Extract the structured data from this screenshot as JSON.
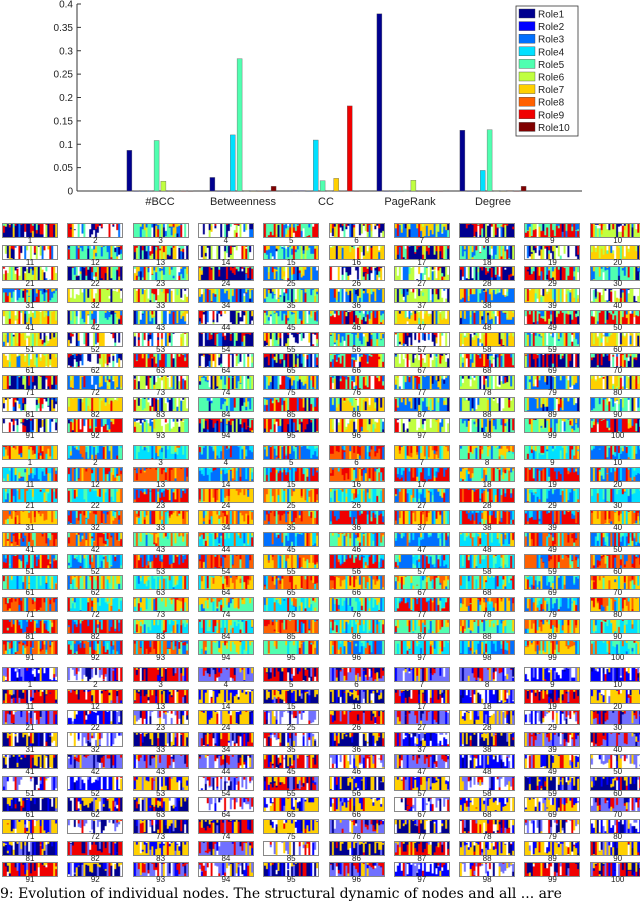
{
  "chart_data": {
    "type": "bar",
    "title": "",
    "xlabel": "",
    "ylabel": "",
    "ylim": [
      0,
      0.4
    ],
    "yticks": [
      "0",
      "0.05",
      "0.1",
      "0.15",
      "0.2",
      "0.25",
      "0.3",
      "0.35",
      "0.4"
    ],
    "categories": [
      "#BCC",
      "Betweenness",
      "CC",
      "PageRank",
      "Degree"
    ],
    "legend_position": "top-right",
    "grid": false,
    "series": [
      {
        "name": "Role1",
        "color": "#00008f",
        "values": [
          0.087,
          0.029,
          0.001,
          0.379,
          0.13
        ]
      },
      {
        "name": "Role2",
        "color": "#0000ff",
        "values": [
          0,
          0,
          0.001,
          0,
          0
        ]
      },
      {
        "name": "Role3",
        "color": "#0070ff",
        "values": [
          0,
          0,
          0,
          0,
          0
        ]
      },
      {
        "name": "Role4",
        "color": "#00e0ff",
        "values": [
          0,
          0.12,
          0.109,
          0,
          0.044
        ]
      },
      {
        "name": "Role5",
        "color": "#50ffb0",
        "values": [
          0.108,
          0.283,
          0.022,
          0.001,
          0.131
        ]
      },
      {
        "name": "Role6",
        "color": "#c0ff40",
        "values": [
          0.021,
          0.001,
          0.001,
          0.023,
          0.001
        ]
      },
      {
        "name": "Role7",
        "color": "#ffd000",
        "values": [
          0,
          0,
          0.027,
          0,
          0
        ]
      },
      {
        "name": "Role8",
        "color": "#ff6000",
        "values": [
          0,
          0,
          0,
          0,
          0.001
        ]
      },
      {
        "name": "Role9",
        "color": "#f00000",
        "values": [
          0,
          0,
          0.182,
          0,
          0
        ]
      },
      {
        "name": "Role10",
        "color": "#800000",
        "values": [
          0,
          0.01,
          0,
          0,
          0.01
        ]
      }
    ]
  },
  "node_labels": [
    "1",
    "2",
    "3",
    "4",
    "5",
    "6",
    "7",
    "8",
    "9",
    "10",
    "11",
    "12",
    "13",
    "14",
    "15",
    "16",
    "17",
    "18",
    "19",
    "20",
    "21",
    "22",
    "23",
    "24",
    "25",
    "26",
    "27",
    "28",
    "29",
    "30",
    "31",
    "32",
    "33",
    "34",
    "35",
    "36",
    "37",
    "38",
    "39",
    "40",
    "41",
    "42",
    "43",
    "44",
    "45",
    "46",
    "47",
    "48",
    "49",
    "50",
    "51",
    "52",
    "53",
    "54",
    "55",
    "56",
    "57",
    "58",
    "59",
    "60",
    "61",
    "62",
    "63",
    "64",
    "65",
    "66",
    "67",
    "68",
    "69",
    "70",
    "71",
    "72",
    "73",
    "74",
    "75",
    "76",
    "77",
    "78",
    "79",
    "80",
    "81",
    "82",
    "83",
    "84",
    "85",
    "86",
    "87",
    "88",
    "89",
    "90",
    "91",
    "92",
    "93",
    "94",
    "95",
    "96",
    "97",
    "98",
    "99",
    "100"
  ],
  "panels": [
    {
      "palette": [
        "#00008f",
        "#f00000",
        "#50ffb0",
        "#0070ff",
        "#ffd000",
        "#c0ff40",
        "#ffffff"
      ]
    },
    {
      "palette": [
        "#00e0ff",
        "#50ffb0",
        "#ffd000",
        "#ff6000",
        "#f00000",
        "#0070ff"
      ]
    },
    {
      "palette": [
        "#0000ff",
        "#ffffff",
        "#7070ff",
        "#f00000",
        "#00008f",
        "#ffd000"
      ]
    }
  ],
  "caption": "9: Evolution of individual nodes. The structural dynamic of nodes and all ... are"
}
